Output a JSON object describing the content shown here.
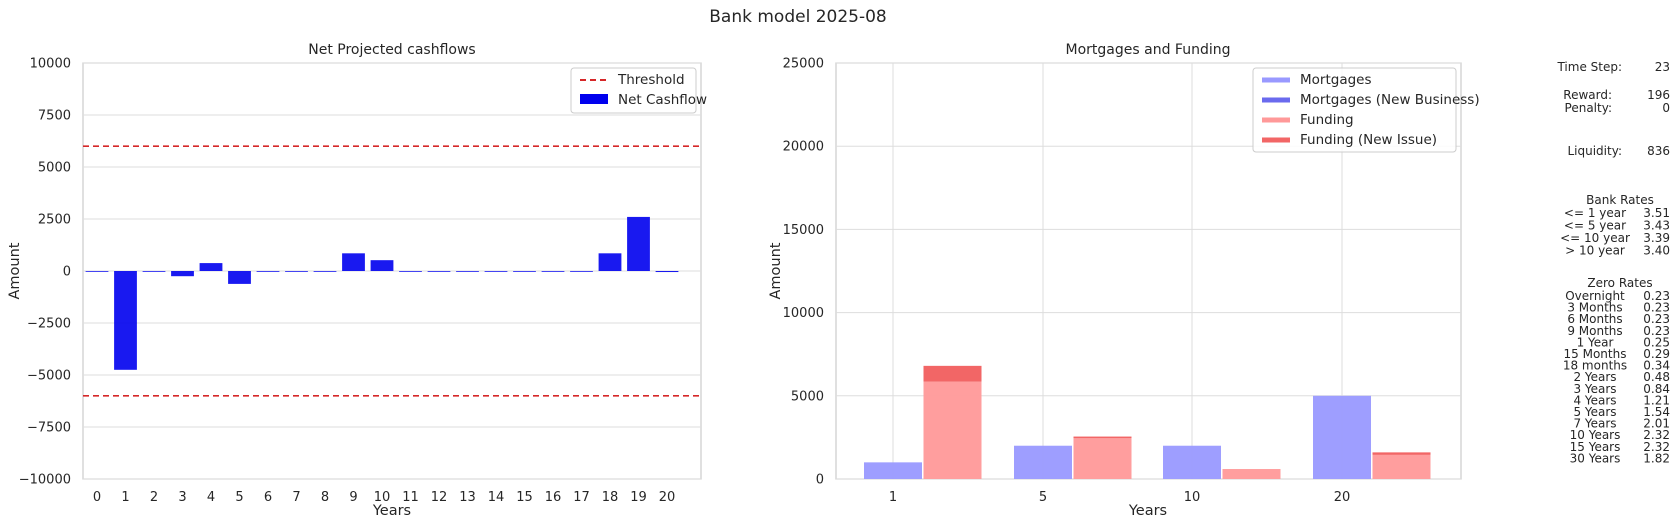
{
  "figure": {
    "suptitle": "Bank model 2025-08"
  },
  "chart_data": [
    {
      "type": "bar",
      "title": "Net Projected cashflows",
      "xlabel": "Years",
      "ylabel": "Amount",
      "ylim": [
        -10000,
        10000
      ],
      "yticks": [
        -10000,
        -7500,
        -5000,
        -2500,
        0,
        2500,
        5000,
        7500,
        10000
      ],
      "ytick_labels": [
        "−10000",
        "−7500",
        "−5000",
        "−2500",
        "0",
        "2500",
        "5000",
        "7500",
        "10000"
      ],
      "categories": [
        "0",
        "1",
        "2",
        "3",
        "4",
        "5",
        "6",
        "7",
        "8",
        "9",
        "10",
        "11",
        "12",
        "13",
        "14",
        "15",
        "16",
        "17",
        "18",
        "19",
        "20"
      ],
      "series": [
        {
          "name": "Net Cashflow",
          "color": "#0000ee",
          "values": [
            0,
            -4750,
            0,
            -250,
            380,
            -620,
            0,
            0,
            0,
            850,
            520,
            0,
            0,
            0,
            0,
            0,
            0,
            0,
            850,
            2600,
            -50
          ]
        }
      ],
      "threshold": {
        "name": "Threshold",
        "values": [
          6000,
          -6000
        ],
        "color": "#d62728"
      },
      "grid": true,
      "legend_position": "top-right"
    },
    {
      "type": "bar",
      "title": "Mortgages and Funding",
      "xlabel": "Years",
      "ylabel": "Amount",
      "ylim": [
        0,
        25000
      ],
      "yticks": [
        0,
        5000,
        10000,
        15000,
        20000,
        25000
      ],
      "categories": [
        "1",
        "5",
        "10",
        "20"
      ],
      "series": [
        {
          "name": "Mortgages",
          "color": "#9999ff",
          "values": [
            1000,
            2000,
            2000,
            5000
          ]
        },
        {
          "name": "Mortgages (New Business)",
          "color": "#6a6aee",
          "values": [
            0,
            0,
            0,
            0
          ]
        },
        {
          "name": "Funding",
          "color": "#ff9999",
          "values": [
            5850,
            2450,
            600,
            1450
          ]
        },
        {
          "name": "Funding (New Issue)",
          "color": "#f26666",
          "values": [
            950,
            100,
            0,
            150
          ]
        }
      ],
      "grid": true,
      "legend_position": "top-right"
    }
  ],
  "side_panel": {
    "time_step": {
      "label": "Time Step:",
      "value": "23"
    },
    "reward": {
      "label": "Reward:",
      "value": "196"
    },
    "penalty": {
      "label": "Penalty:",
      "value": "0"
    },
    "liquidity": {
      "label": "Liquidity:",
      "value": "836"
    },
    "bank_rates": {
      "title": "Bank Rates",
      "rows": [
        {
          "label": "<= 1 year",
          "value": "3.51"
        },
        {
          "label": "<= 5 year",
          "value": "3.43"
        },
        {
          "label": "<= 10 year",
          "value": "3.39"
        },
        {
          "label": "> 10 year",
          "value": "3.40"
        }
      ]
    },
    "zero_rates": {
      "title": "Zero Rates",
      "rows": [
        {
          "label": "Overnight",
          "value": "0.23"
        },
        {
          "label": "3 Months",
          "value": "0.23"
        },
        {
          "label": "6 Months",
          "value": "0.23"
        },
        {
          "label": "9 Months",
          "value": "0.23"
        },
        {
          "label": "1 Year",
          "value": "0.25"
        },
        {
          "label": "15 Months",
          "value": "0.29"
        },
        {
          "label": "18 months",
          "value": "0.34"
        },
        {
          "label": "2 Years",
          "value": "0.48"
        },
        {
          "label": "3 Years",
          "value": "0.84"
        },
        {
          "label": "4 Years",
          "value": "1.21"
        },
        {
          "label": "5 Years",
          "value": "1.54"
        },
        {
          "label": "7 Years",
          "value": "2.01"
        },
        {
          "label": "10 Years",
          "value": "2.32"
        },
        {
          "label": "15 Years",
          "value": "2.32"
        },
        {
          "label": "30 Years",
          "value": "1.82"
        }
      ]
    }
  }
}
